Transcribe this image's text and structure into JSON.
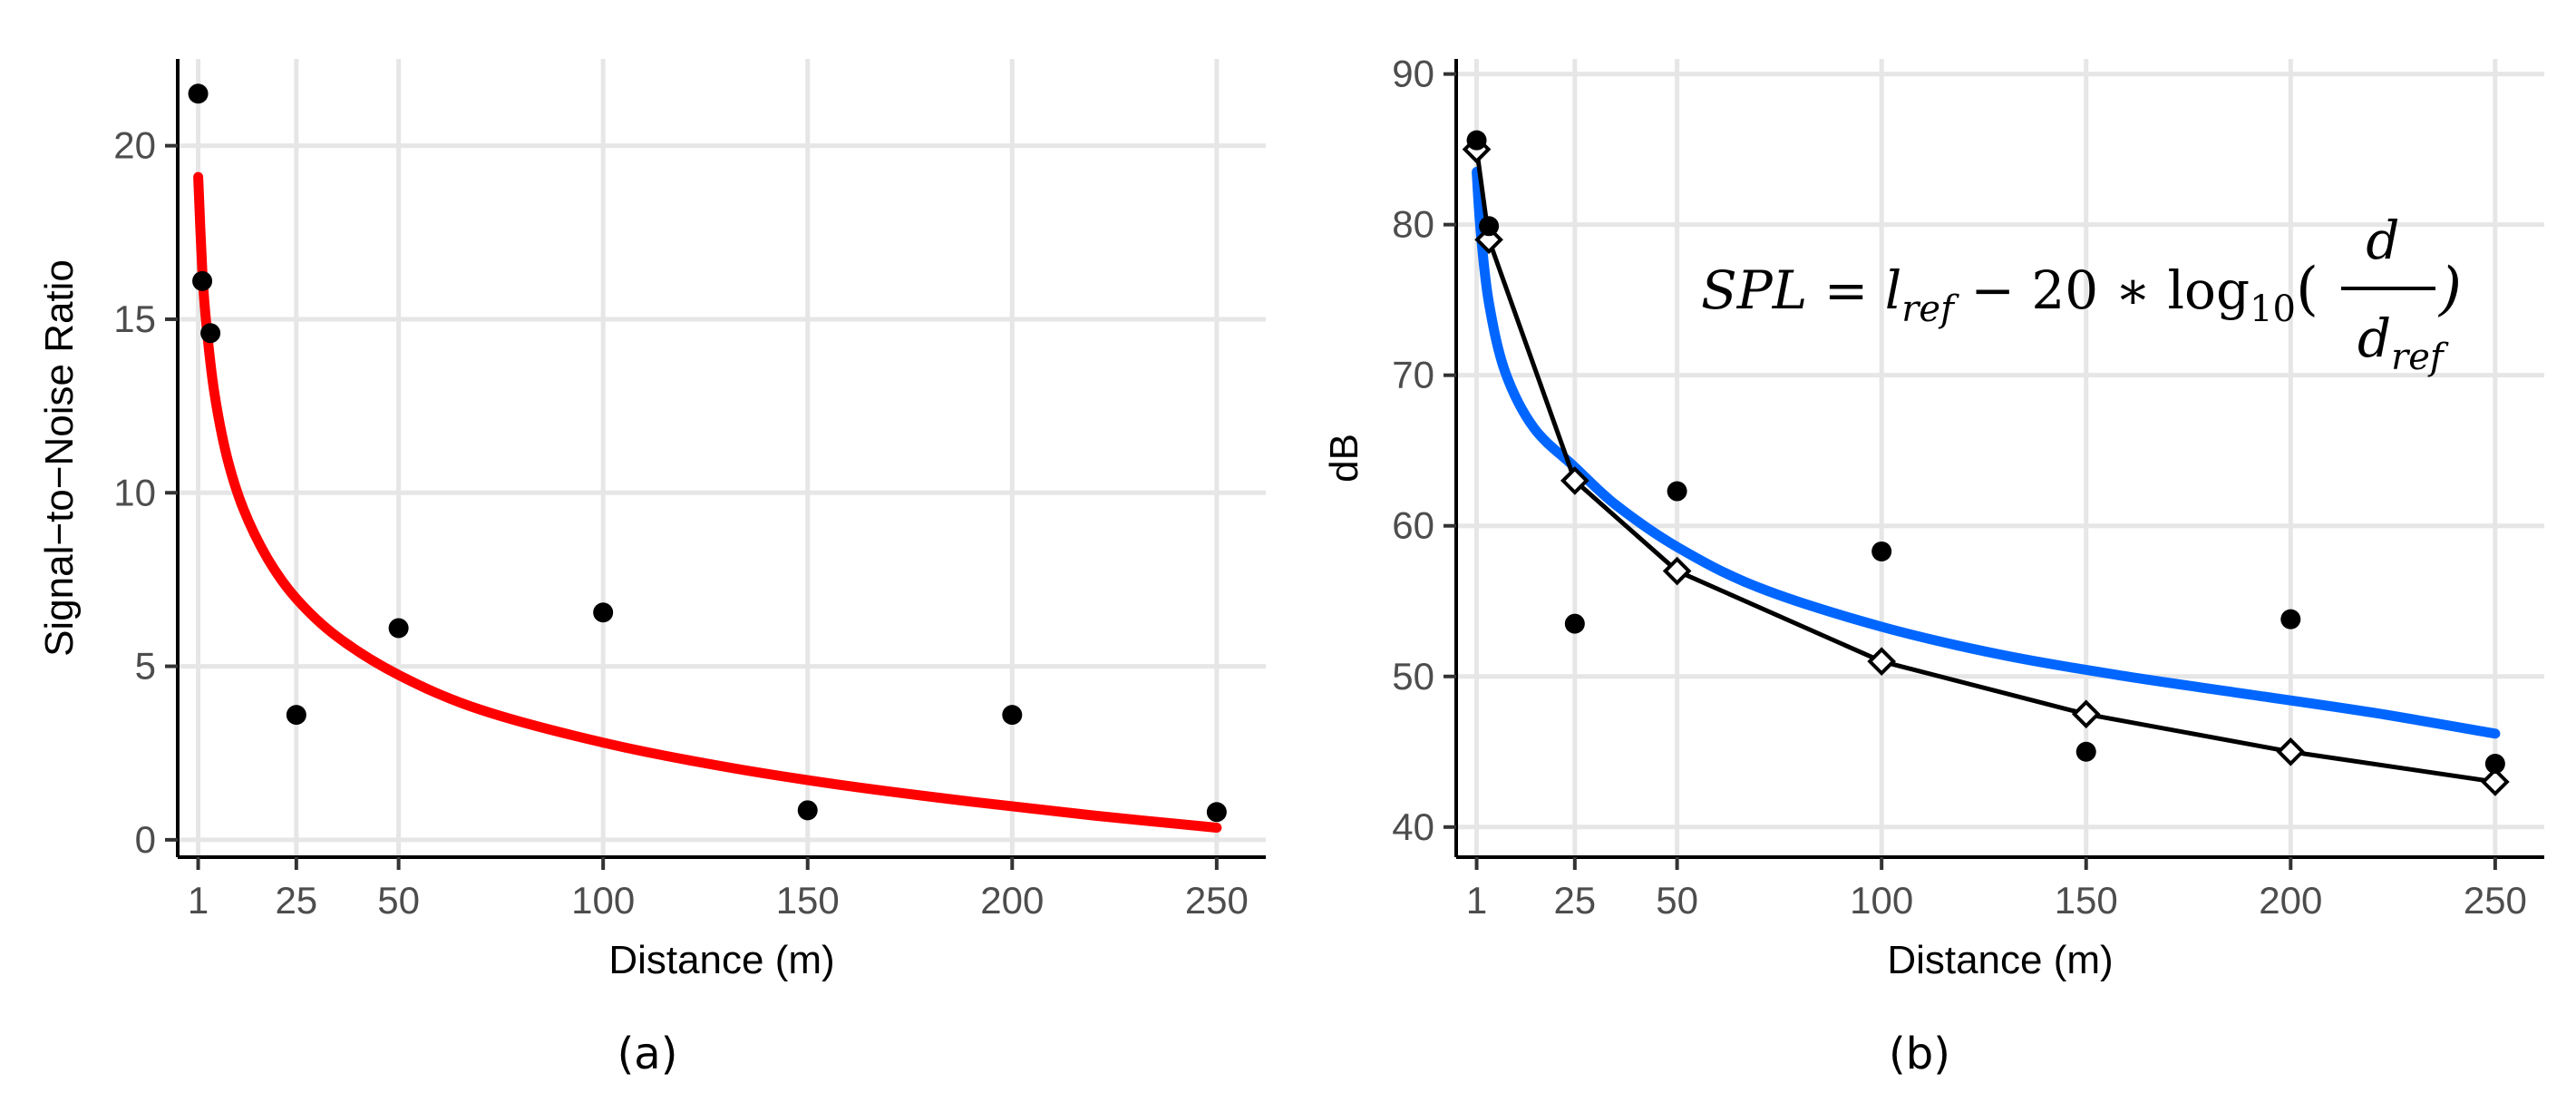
{
  "figure": {
    "caption_a": "(a)",
    "caption_b": "(b)"
  },
  "colors": {
    "fit_a": "#ff0000",
    "fit_b": "#0066ff",
    "points": "#000000",
    "model_line": "#000000"
  },
  "chart_data": [
    {
      "type": "scatter",
      "panel": "a",
      "title": "",
      "xlabel": "Distance (m)",
      "ylabel": "Signal−to−Noise Ratio",
      "xlim": [
        -4,
        262
      ],
      "ylim": [
        -0.5,
        22.5
      ],
      "x_ticks": [
        1,
        25,
        50,
        100,
        150,
        200,
        250
      ],
      "y_ticks": [
        0,
        5,
        10,
        15,
        20
      ],
      "x_tick_labels": [
        "1",
        "25",
        "50",
        "100",
        "150",
        "200",
        "250"
      ],
      "y_tick_labels": [
        "0",
        "5",
        "10",
        "15",
        "20"
      ],
      "grid": true,
      "points": {
        "name": "observed",
        "x": [
          1,
          2,
          4,
          25,
          50,
          100,
          150,
          200,
          250
        ],
        "y": [
          21.5,
          16.1,
          14.6,
          3.6,
          6.1,
          6.55,
          0.85,
          3.6,
          0.8
        ]
      },
      "fit": {
        "name": "fit",
        "color": "#ff0000",
        "x": [
          1,
          2,
          3,
          5,
          8,
          12,
          18,
          25,
          35,
          50,
          70,
          100,
          130,
          160,
          190,
          220,
          250
        ],
        "y": [
          19.1,
          16.4,
          14.85,
          12.85,
          11.05,
          9.55,
          8.1,
          6.95,
          5.85,
          4.75,
          3.75,
          2.8,
          2.1,
          1.55,
          1.1,
          0.7,
          0.35
        ]
      }
    },
    {
      "type": "scatter",
      "panel": "b",
      "title": "",
      "xlabel": "Distance (m)",
      "ylabel": "dB",
      "xlim": [
        -4,
        262
      ],
      "ylim": [
        38,
        91
      ],
      "x_ticks": [
        1,
        25,
        50,
        100,
        150,
        200,
        250
      ],
      "y_ticks": [
        40,
        50,
        60,
        70,
        80,
        90
      ],
      "x_tick_labels": [
        "1",
        "25",
        "50",
        "100",
        "150",
        "200",
        "250"
      ],
      "y_tick_labels": [
        "40",
        "50",
        "60",
        "70",
        "80",
        "90"
      ],
      "grid": true,
      "annotation": {
        "lhs": "SPL = l",
        "lhs_sub": "ref",
        "middle": " − 20 ∗ log",
        "log_sub": "10",
        "numerator": "d",
        "denominator": "d",
        "den_sub": "ref",
        "open_paren": "(",
        "close_paren": ")"
      },
      "points": {
        "name": "observed",
        "x": [
          1,
          4,
          25,
          50,
          100,
          150,
          200,
          250
        ],
        "y": [
          85.6,
          79.9,
          53.5,
          62.3,
          58.3,
          45.0,
          53.8,
          44.2
        ]
      },
      "model": {
        "name": "model",
        "marker": "diamond",
        "x": [
          1,
          4,
          25,
          50,
          100,
          150,
          200,
          250
        ],
        "y": [
          85.0,
          79.0,
          63.0,
          57.0,
          51.0,
          47.5,
          45.0,
          43.0
        ]
      },
      "fit": {
        "name": "fit",
        "color": "#0066ff",
        "x": [
          1,
          2,
          4,
          8,
          15,
          25,
          35,
          50,
          70,
          100,
          130,
          160,
          190,
          220,
          250
        ],
        "y": [
          83.5,
          79.5,
          74.8,
          70.2,
          66.5,
          63.9,
          61.4,
          58.6,
          55.9,
          53.3,
          51.4,
          50.0,
          48.8,
          47.6,
          46.2
        ]
      }
    }
  ]
}
